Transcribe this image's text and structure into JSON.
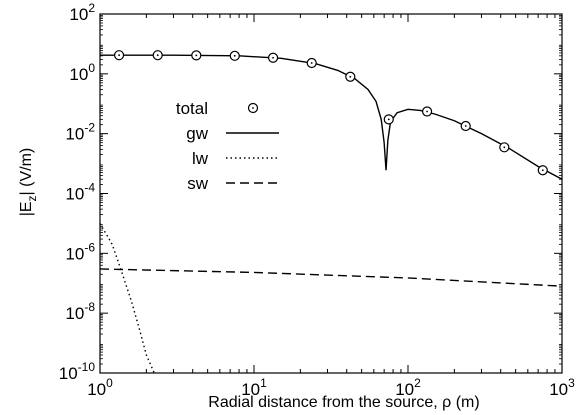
{
  "chart_data": {
    "type": "line",
    "xlabel": "Radial distance from the source, ρ (m)",
    "ylabel_main": "|E",
    "ylabel_sub": "z",
    "ylabel_rest": "|  (V/m)",
    "x_scale": "log",
    "y_scale": "log",
    "xlim": [
      1,
      1000
    ],
    "ylim": [
      1e-10,
      100
    ],
    "x_ticks": [
      {
        "value": 1,
        "base": "10",
        "exp": "0"
      },
      {
        "value": 10,
        "base": "10",
        "exp": "1"
      },
      {
        "value": 100,
        "base": "10",
        "exp": "2"
      },
      {
        "value": 1000,
        "base": "10",
        "exp": "3"
      }
    ],
    "y_ticks": [
      {
        "value": 1e-10,
        "base": "10",
        "exp": "-10"
      },
      {
        "value": 1e-08,
        "base": "10",
        "exp": "-8"
      },
      {
        "value": 1e-06,
        "base": "10",
        "exp": "-6"
      },
      {
        "value": 0.0001,
        "base": "10",
        "exp": "-4"
      },
      {
        "value": 0.01,
        "base": "10",
        "exp": "-2"
      },
      {
        "value": 1,
        "base": "10",
        "exp": "0"
      },
      {
        "value": 100,
        "base": "10",
        "exp": "2"
      }
    ],
    "grid": false,
    "legend_position": "center-left",
    "series": [
      {
        "name": "total",
        "style": "markers",
        "points": [
          {
            "x": 1.33,
            "y": 4.2
          },
          {
            "x": 2.37,
            "y": 4.2
          },
          {
            "x": 4.22,
            "y": 4.15
          },
          {
            "x": 7.5,
            "y": 4.0
          },
          {
            "x": 13.3,
            "y": 3.45
          },
          {
            "x": 23.7,
            "y": 2.3
          },
          {
            "x": 42.2,
            "y": 0.8
          },
          {
            "x": 75,
            "y": 0.03
          },
          {
            "x": 133,
            "y": 0.055
          },
          {
            "x": 237,
            "y": 0.018
          },
          {
            "x": 422,
            "y": 0.0035
          },
          {
            "x": 750,
            "y": 0.0006
          }
        ]
      },
      {
        "name": "gw",
        "style": "solid",
        "points": [
          {
            "x": 1,
            "y": 4.2
          },
          {
            "x": 3,
            "y": 4.2
          },
          {
            "x": 8,
            "y": 4.0
          },
          {
            "x": 15,
            "y": 3.3
          },
          {
            "x": 25,
            "y": 2.2
          },
          {
            "x": 35,
            "y": 1.3
          },
          {
            "x": 45,
            "y": 0.7
          },
          {
            "x": 55,
            "y": 0.3
          },
          {
            "x": 62,
            "y": 0.12
          },
          {
            "x": 67,
            "y": 0.03
          },
          {
            "x": 70,
            "y": 0.005
          },
          {
            "x": 72,
            "y": 0.0006
          },
          {
            "x": 74,
            "y": 0.006
          },
          {
            "x": 77,
            "y": 0.025
          },
          {
            "x": 85,
            "y": 0.05
          },
          {
            "x": 100,
            "y": 0.065
          },
          {
            "x": 120,
            "y": 0.06
          },
          {
            "x": 150,
            "y": 0.045
          },
          {
            "x": 200,
            "y": 0.027
          },
          {
            "x": 300,
            "y": 0.01
          },
          {
            "x": 450,
            "y": 0.0033
          },
          {
            "x": 700,
            "y": 0.0008
          },
          {
            "x": 1000,
            "y": 0.0003
          }
        ]
      },
      {
        "name": "lw",
        "style": "dotted",
        "points": [
          {
            "x": 1,
            "y": 1e-05
          },
          {
            "x": 1.2,
            "y": 2e-06
          },
          {
            "x": 1.4,
            "y": 2e-07
          },
          {
            "x": 1.6,
            "y": 2.5e-08
          },
          {
            "x": 1.8,
            "y": 3e-09
          },
          {
            "x": 2.0,
            "y": 4e-10
          },
          {
            "x": 2.25,
            "y": 1e-10
          }
        ]
      },
      {
        "name": "sw",
        "style": "dashed",
        "points": [
          {
            "x": 1,
            "y": 3e-07
          },
          {
            "x": 10,
            "y": 2.3e-07
          },
          {
            "x": 100,
            "y": 1.5e-07
          },
          {
            "x": 1000,
            "y": 8e-08
          }
        ]
      }
    ]
  }
}
